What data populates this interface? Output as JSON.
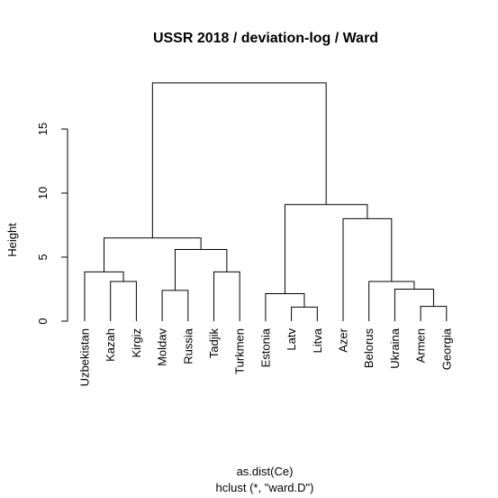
{
  "chart_data": {
    "type": "dendrogram",
    "title": "USSR 2018 / deviation-log / Ward",
    "ylabel": "Height",
    "xlabel": "as.dist(Ce)",
    "sub": "hclust (*, \"ward.D\")",
    "ylim": [
      0,
      19
    ],
    "yticks": [
      0,
      5,
      10,
      15
    ],
    "ytick_labels": [
      "0",
      "5",
      "10",
      "15"
    ],
    "labels": [
      "Uzbekistan",
      "Kazah",
      "Kirgiz",
      "Moldav",
      "Russia",
      "Tadjik",
      "Turkmen",
      "Estonia",
      "Latv",
      "Litva",
      "Azer",
      "Belorus",
      "Ukraina",
      "Armen",
      "Georgia"
    ],
    "merges": [
      {
        "left": "Latv",
        "right": "Litva",
        "height": 1.1
      },
      {
        "left": "Armen",
        "right": "Georgia",
        "height": 1.15
      },
      {
        "left": "Moldav",
        "right": "Russia",
        "height": 2.4
      },
      {
        "left": "Estonia",
        "right": "Latv+Litva",
        "height": 2.15
      },
      {
        "left": "Ukraina",
        "right": "Armen+Georgia",
        "height": 2.5
      },
      {
        "left": "Kazah",
        "right": "Kirgiz",
        "height": 3.1
      },
      {
        "left": "Belorus",
        "right": "Ukraina+Armen+Georgia",
        "height": 3.1
      },
      {
        "left": "Tadjik",
        "right": "Turkmen",
        "height": 3.85
      },
      {
        "left": "Uzbekistan",
        "right": "Kazah+Kirgiz",
        "height": 3.85
      },
      {
        "left": "Moldav+Russia",
        "right": "Tadjik+Turkmen",
        "height": 5.6
      },
      {
        "left": "Uzbekistan+Kazah+Kirgiz",
        "right": "Moldav+Russia+Tadjik+Turkmen",
        "height": 6.5
      },
      {
        "left": "Azer",
        "right": "Belorus+Ukraina+Armen+Georgia",
        "height": 8.0
      },
      {
        "left": "Estonia+Latv+Litva",
        "right": "Azer+Belorus+Ukraina+Armen+Georgia",
        "height": 9.1
      },
      {
        "left": "Uzbekistan+Kazah+Kirgiz+Moldav+Russia+Tadjik+Turkmen",
        "right": "Estonia+Latv+Litva+Azer+Belorus+Ukraina+Armen+Georgia",
        "height": 18.6
      }
    ]
  }
}
